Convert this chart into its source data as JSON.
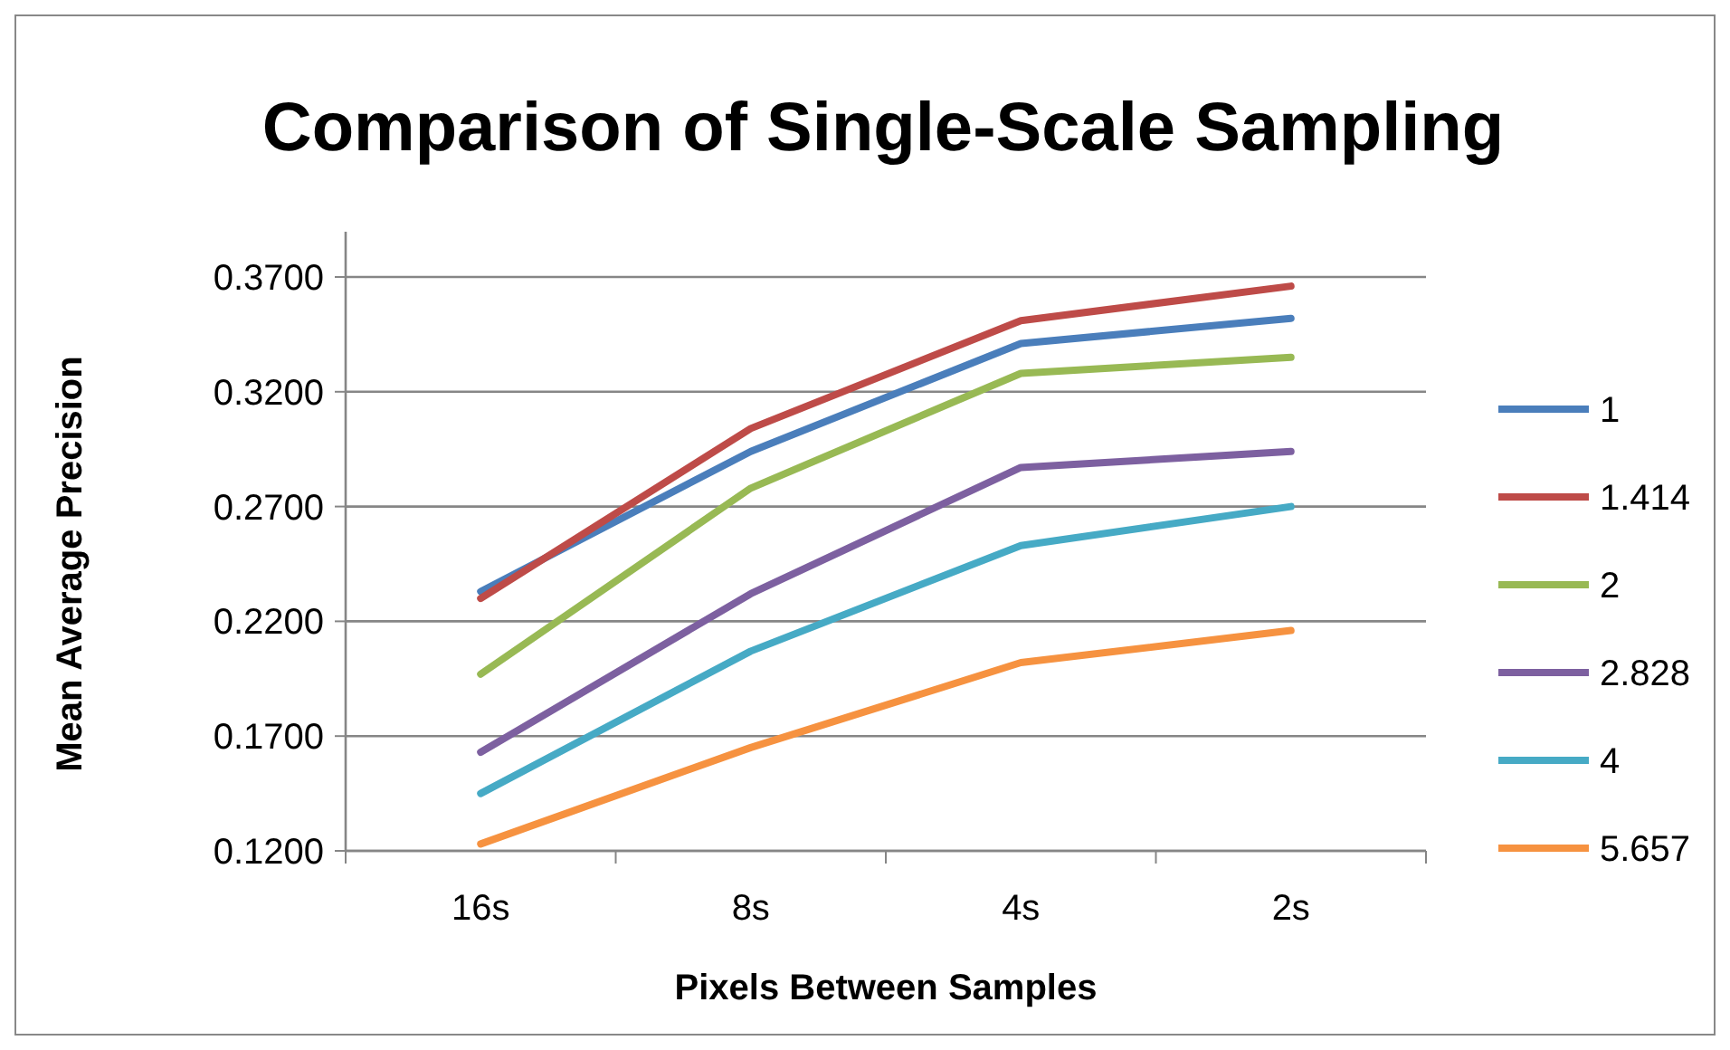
{
  "chart_data": {
    "type": "line",
    "title": "Comparison of Single-Scale Sampling",
    "xlabel": "Pixels Between Samples",
    "ylabel": "Mean Average Precision",
    "categories": [
      "16s",
      "8s",
      "4s",
      "2s"
    ],
    "ylim": [
      0.12,
      0.37
    ],
    "yticks": [
      {
        "value": 0.12,
        "label": "0.1200"
      },
      {
        "value": 0.17,
        "label": "0.1700"
      },
      {
        "value": 0.22,
        "label": "0.2200"
      },
      {
        "value": 0.27,
        "label": "0.2700"
      },
      {
        "value": 0.32,
        "label": "0.3200"
      },
      {
        "value": 0.37,
        "label": "0.3700"
      }
    ],
    "grid": "y",
    "legend": "right",
    "marker": "none",
    "line_style": "solid",
    "series": [
      {
        "name": "1",
        "color": "#4a7ebb",
        "values": [
          0.233,
          0.294,
          0.341,
          0.352
        ]
      },
      {
        "name": "1.414",
        "color": "#be4b48",
        "values": [
          0.23,
          0.304,
          0.351,
          0.366
        ]
      },
      {
        "name": "2",
        "color": "#98b954",
        "values": [
          0.197,
          0.278,
          0.328,
          0.335
        ]
      },
      {
        "name": "2.828",
        "color": "#7d60a0",
        "values": [
          0.163,
          0.232,
          0.287,
          0.294
        ]
      },
      {
        "name": "4",
        "color": "#46aac5",
        "values": [
          0.145,
          0.207,
          0.253,
          0.27
        ]
      },
      {
        "name": "5.657",
        "color": "#f69240",
        "values": [
          0.123,
          0.165,
          0.202,
          0.216
        ]
      }
    ]
  }
}
